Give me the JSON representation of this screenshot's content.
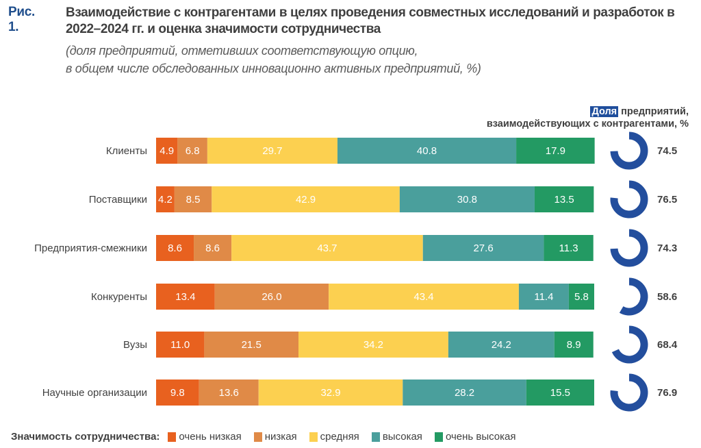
{
  "figure_label": "Рис. 1.",
  "chart_data": {
    "type": "bar",
    "orientation": "horizontal",
    "stacked": true,
    "title": "Взаимодействие с контрагентами в целях проведения совместных исследований и разработок в 2022–2024 гг. и оценка значимости сотрудничества",
    "subtitle_lines": [
      "(доля предприятий, отметивших соответствующую опцию,",
      "в общем числе обследованных инновационно активных предприятий, %)"
    ],
    "xlabel": "",
    "ylabel": "",
    "xlim": [
      0,
      100
    ],
    "grid": false,
    "categories": [
      "Клиенты",
      "Поставщики",
      "Предприятия-смежники",
      "Конкуренты",
      "Вузы",
      "Научные организации"
    ],
    "series": [
      {
        "name": "очень низкая",
        "color": "#e8611f",
        "values": [
          4.9,
          4.2,
          8.6,
          13.4,
          11.0,
          9.8
        ]
      },
      {
        "name": "низкая",
        "color": "#e08a47",
        "values": [
          6.8,
          8.5,
          8.6,
          26.0,
          21.5,
          13.6
        ]
      },
      {
        "name": "средняя",
        "color": "#fcd050",
        "values": [
          29.7,
          42.9,
          43.7,
          43.4,
          34.2,
          32.9
        ]
      },
      {
        "name": "высокая",
        "color": "#4a9f9c",
        "values": [
          40.8,
          30.8,
          27.6,
          11.4,
          24.2,
          28.2
        ]
      },
      {
        "name": "очень высокая",
        "color": "#239a63",
        "values": [
          17.9,
          13.5,
          11.3,
          5.8,
          8.9,
          15.5
        ]
      }
    ],
    "share": {
      "type": "donut",
      "header_highlight": "Доля",
      "header_rest_line1": "предприятий,",
      "header_line2": "взаимодействующих с контрагентами, %",
      "color": "#234e9d",
      "values": [
        74.5,
        76.5,
        74.3,
        58.6,
        68.4,
        76.9
      ]
    },
    "legend": {
      "title": "Значимость сотрудничества:",
      "position": "bottom-left"
    }
  }
}
